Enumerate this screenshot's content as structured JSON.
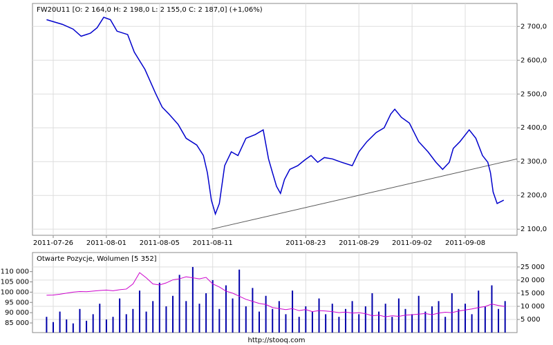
{
  "chart_data": [
    {
      "type": "line",
      "title": "FW20U11 [O: 2 164,0  H: 2 198,0  L: 2 155,0  C: 2 187,0] (+1,06%)",
      "x": [
        -0.5,
        0.7,
        1.5,
        2.1,
        2.8,
        3.3,
        3.8,
        4.3,
        4.8,
        5.6,
        6.1,
        6.9,
        7.7,
        8.2,
        8.7,
        9.4,
        10.0,
        10.8,
        11.3,
        11.6,
        11.9,
        12.2,
        12.5,
        12.9,
        13.4,
        13.9,
        14.5,
        15.2,
        15.8,
        16.2,
        16.5,
        16.8,
        17.1,
        17.4,
        17.8,
        18.4,
        18.9,
        19.4,
        19.9,
        20.4,
        21.0,
        21.7,
        22.5,
        23.0,
        23.6,
        24.3,
        24.9,
        25.4,
        25.7,
        26.2,
        26.8,
        27.5,
        28.2,
        28.8,
        29.3,
        29.8,
        30.1,
        30.6,
        31.3,
        31.8,
        32.3,
        32.7,
        32.9,
        33.1,
        33.4,
        33.9
      ],
      "series": [
        {
          "color": "#0000cc",
          "values": [
            2720,
            2706,
            2692,
            2671,
            2680,
            2696,
            2727,
            2720,
            2686,
            2676,
            2624,
            2573,
            2502,
            2461,
            2441,
            2410,
            2369,
            2349,
            2318,
            2267,
            2186,
            2145,
            2176,
            2288,
            2329,
            2318,
            2369,
            2380,
            2394,
            2308,
            2267,
            2227,
            2206,
            2247,
            2277,
            2288,
            2304,
            2318,
            2298,
            2312,
            2308,
            2298,
            2288,
            2329,
            2359,
            2386,
            2400,
            2441,
            2455,
            2431,
            2414,
            2359,
            2329,
            2298,
            2277,
            2298,
            2339,
            2359,
            2394,
            2369,
            2318,
            2298,
            2267,
            2210,
            2176,
            2186
          ]
        }
      ],
      "trendline": {
        "color": "#555555",
        "x": [
          11.9,
          34.9
        ],
        "y": [
          2100,
          2308
        ]
      },
      "xlim": [
        -1.56,
        34.9
      ],
      "ylim": [
        2082,
        2768
      ],
      "xticks": [
        {
          "value": 0,
          "label": "2011-07-26"
        },
        {
          "value": 4,
          "label": "2011-08-01"
        },
        {
          "value": 8,
          "label": "2011-08-05"
        },
        {
          "value": 12,
          "label": "2011-08-11"
        },
        {
          "value": 19,
          "label": "2011-08-23"
        },
        {
          "value": 23,
          "label": "2011-08-29"
        },
        {
          "value": 27,
          "label": "2011-09-02"
        },
        {
          "value": 31,
          "label": "2011-09-08"
        }
      ],
      "yticks": [
        {
          "value": 2100,
          "label": "2 100,0"
        },
        {
          "value": 2200,
          "label": "2 200,0"
        },
        {
          "value": 2300,
          "label": "2 300,0"
        },
        {
          "value": 2400,
          "label": "2 400,0"
        },
        {
          "value": 2500,
          "label": "2 500,0"
        },
        {
          "value": 2600,
          "label": "2 600,0"
        },
        {
          "value": 2700,
          "label": "2 700,0"
        }
      ],
      "grid": true
    },
    {
      "type": "bar",
      "title": "Otwarte Pozycje, Wolumen [5 352]",
      "x": [
        -0.5,
        0,
        0.5,
        1,
        1.5,
        2,
        2.5,
        3,
        3.5,
        4,
        4.5,
        5,
        5.5,
        6,
        6.5,
        7,
        7.5,
        8,
        8.5,
        9,
        9.5,
        10,
        10.5,
        11,
        11.5,
        12,
        12.5,
        13,
        13.5,
        14,
        14.5,
        15,
        15.5,
        16,
        16.5,
        17,
        17.5,
        18,
        18.5,
        19,
        19.5,
        20,
        20.5,
        21,
        21.5,
        22,
        22.5,
        23,
        23.5,
        24,
        24.5,
        25,
        25.5,
        26,
        26.5,
        27,
        27.5,
        28,
        28.5,
        29,
        29.5,
        30,
        30.5,
        31,
        31.5,
        32,
        32.5,
        33,
        33.5,
        34
      ],
      "series": [
        {
          "color": "#cc00cc",
          "values": [
            98500,
            98600,
            99000,
            99500,
            100000,
            100300,
            100200,
            100500,
            100800,
            101000,
            100700,
            101200,
            101500,
            104000,
            109500,
            107000,
            104000,
            103500,
            104500,
            106000,
            106500,
            107500,
            107000,
            106500,
            107200,
            104000,
            102500,
            100500,
            99500,
            98000,
            96500,
            95500,
            94500,
            94000,
            92500,
            92000,
            91500,
            92000,
            91000,
            91500,
            90500,
            91000,
            90800,
            90500,
            90000,
            90300,
            89800,
            90000,
            89500,
            88500,
            88800,
            88000,
            88500,
            88200,
            88800,
            89000,
            89300,
            89600,
            89000,
            89800,
            90200,
            90000,
            90800,
            91300,
            91800,
            92500,
            93000,
            94200,
            93500,
            93000
          ]
        },
        {
          "color": "#0000aa",
          "axis": "y2",
          "values": [
            6000,
            4000,
            8000,
            5000,
            3500,
            9000,
            4500,
            7000,
            11000,
            5000,
            6000,
            13000,
            7000,
            9000,
            16000,
            8000,
            12000,
            19000,
            10000,
            14000,
            22000,
            12000,
            25000,
            11000,
            15000,
            20000,
            9000,
            18000,
            13000,
            24000,
            10000,
            17000,
            8000,
            14000,
            9000,
            12000,
            7000,
            16000,
            6000,
            10000,
            8000,
            13000,
            7000,
            11000,
            6000,
            9000,
            12000,
            7000,
            10000,
            15000,
            8000,
            11000,
            6000,
            13000,
            9000,
            7000,
            14000,
            8000,
            10000,
            12000,
            6000,
            15000,
            9000,
            11000,
            7000,
            16000,
            10000,
            18000,
            9000,
            12000
          ]
        }
      ],
      "xlim": [
        -1.56,
        34.9
      ],
      "ylim": [
        80300,
        119300
      ],
      "y2lim": [
        0,
        30500
      ],
      "yticks": [
        {
          "value": 85000,
          "label": "85 000"
        },
        {
          "value": 90000,
          "label": "90 000"
        },
        {
          "value": 95000,
          "label": "95 000"
        },
        {
          "value": 100000,
          "label": "100 000"
        },
        {
          "value": 105000,
          "label": "105 000"
        },
        {
          "value": 110000,
          "label": "110 000"
        }
      ],
      "y2ticks": [
        {
          "value": 5000,
          "label": "5 000"
        },
        {
          "value": 10000,
          "label": "10 000"
        },
        {
          "value": 15000,
          "label": "15 000"
        },
        {
          "value": 20000,
          "label": "20 000"
        },
        {
          "value": 25000,
          "label": "25 000"
        }
      ],
      "grid": true
    }
  ],
  "footer": "http://stooq.com"
}
